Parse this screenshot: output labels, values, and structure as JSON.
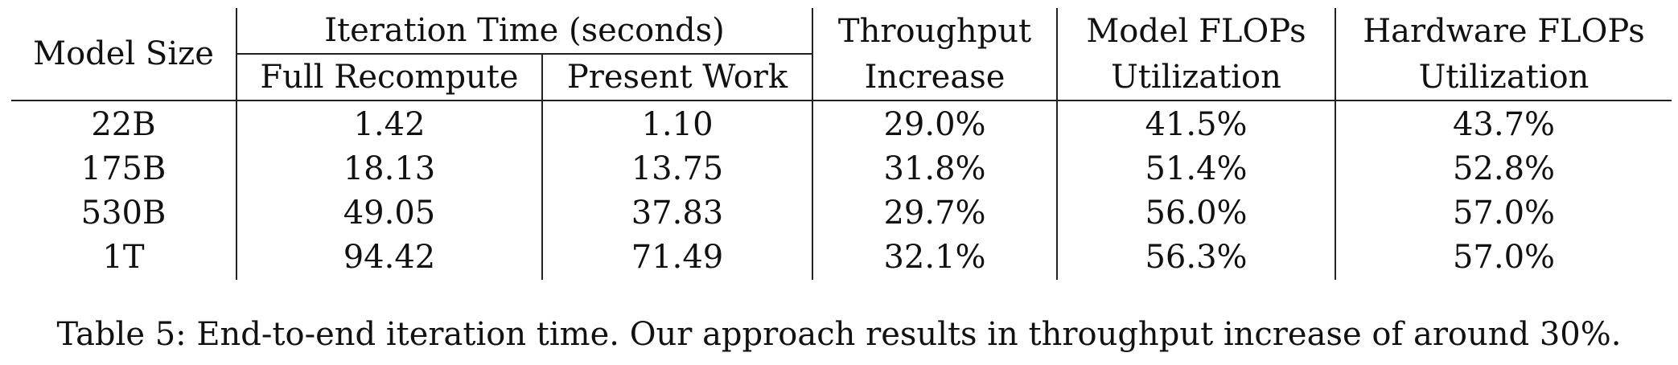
{
  "table": {
    "columns": {
      "model_size": "Model Size",
      "iteration_time_group": "Iteration Time (seconds)",
      "full_recompute": "Full Recompute",
      "present_work": "Present Work",
      "throughput_line1": "Throughput",
      "throughput_line2": "Increase",
      "mfu_line1": "Model FLOPs",
      "mfu_line2": "Utilization",
      "hfu_line1": "Hardware FLOPs",
      "hfu_line2": "Utilization"
    },
    "rows": [
      {
        "model_size": "22B",
        "full_recompute": "1.42",
        "present_work": "1.10",
        "throughput_increase": "29.0%",
        "mfu": "41.5%",
        "hfu": "43.7%"
      },
      {
        "model_size": "175B",
        "full_recompute": "18.13",
        "present_work": "13.75",
        "throughput_increase": "31.8%",
        "mfu": "51.4%",
        "hfu": "52.8%"
      },
      {
        "model_size": "530B",
        "full_recompute": "49.05",
        "present_work": "37.83",
        "throughput_increase": "29.7%",
        "mfu": "56.0%",
        "hfu": "57.0%"
      },
      {
        "model_size": "1T",
        "full_recompute": "94.42",
        "present_work": "71.49",
        "throughput_increase": "32.1%",
        "mfu": "56.3%",
        "hfu": "57.0%"
      }
    ]
  },
  "caption": "Table 5: End-to-end iteration time. Our approach results in throughput increase of around 30%."
}
